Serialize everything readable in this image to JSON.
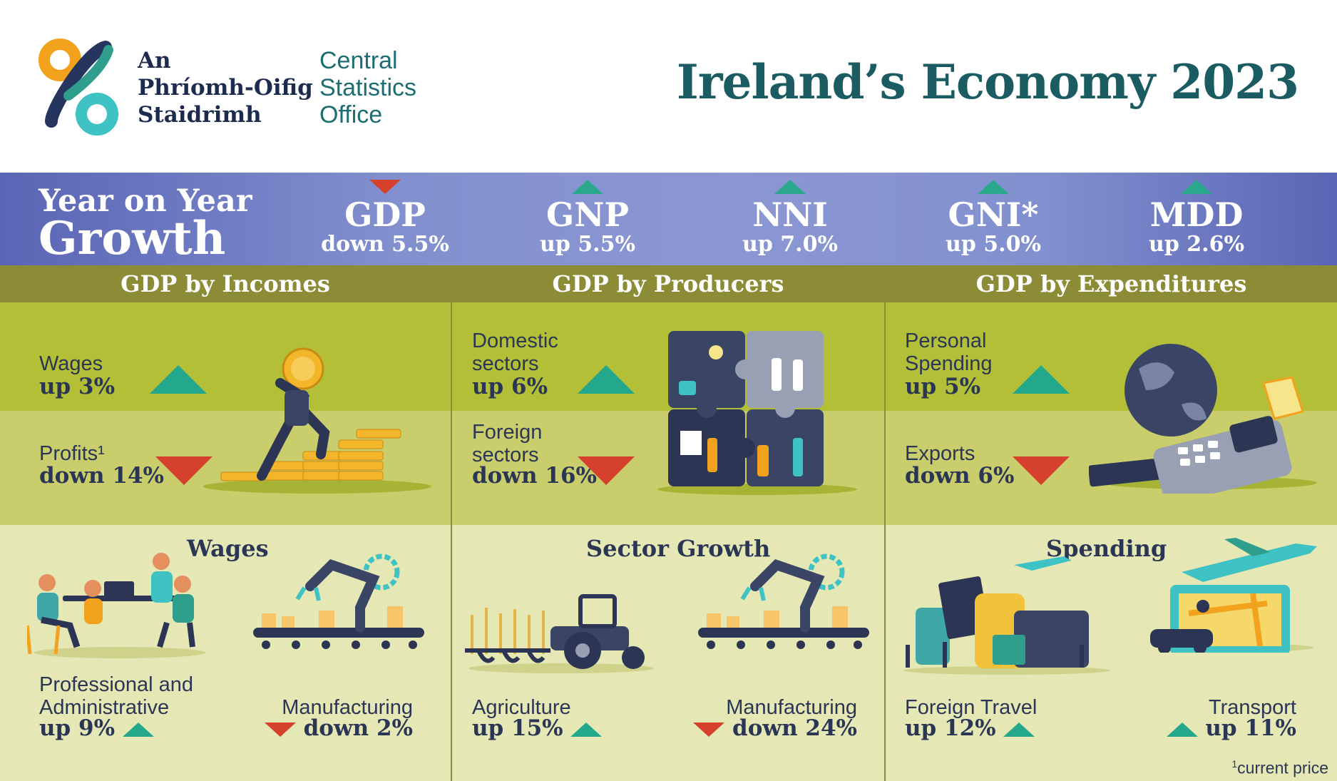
{
  "header": {
    "logo_irish": [
      "An",
      "Phríomh-Oifig",
      "Staidrimh"
    ],
    "logo_english": [
      "Central",
      "Statistics",
      "Office"
    ],
    "title": "Ireland’s Economy 2023"
  },
  "growth": {
    "heading_line1": "Year on Year",
    "heading_line2": "Growth",
    "metrics": [
      {
        "name": "GDP",
        "change": "down 5.5%",
        "direction": "down"
      },
      {
        "name": "GNP",
        "change": "up 5.5%",
        "direction": "up"
      },
      {
        "name": "NNI",
        "change": "up 7.0%",
        "direction": "up"
      },
      {
        "name": "GNI*",
        "change": "up 5.0%",
        "direction": "up"
      },
      {
        "name": "MDD",
        "change": "up 2.6%",
        "direction": "up"
      }
    ]
  },
  "incomes": {
    "title": "GDP by Incomes",
    "up_label": "Wages",
    "up_value": "up 3%",
    "down_label": "Profits¹",
    "down_value": "down 14%",
    "sub_title": "Wages",
    "left_label": [
      "Professional and",
      "Administrative"
    ],
    "left_value": "up 9%",
    "right_label": "Manufacturing",
    "right_value": "down 2%"
  },
  "producers": {
    "title": "GDP by Producers",
    "up_label": [
      "Domestic",
      "sectors"
    ],
    "up_value": "up 6%",
    "down_label": [
      "Foreign",
      "sectors"
    ],
    "down_value": "down 16%",
    "sub_title": "Sector Growth",
    "left_label": "Agriculture",
    "left_value": "up 15%",
    "right_label": "Manufacturing",
    "right_value": "down 24%"
  },
  "expenditures": {
    "title": "GDP by Expenditures",
    "up_label": [
      "Personal",
      "Spending"
    ],
    "up_value": "up 5%",
    "down_label": "Exports",
    "down_value": "down 6%",
    "sub_title": "Spending",
    "left_label": "Foreign Travel",
    "left_value": "up 12%",
    "right_label": "Transport",
    "right_value": "up 11%"
  },
  "footnote": {
    "marker": "1",
    "text": "current price"
  },
  "colors": {
    "up": "#23a88c",
    "down": "#d6412e",
    "header_teal": "#1b5c62",
    "band": "#8290cf",
    "olive": "#8d8c36"
  },
  "icons": [
    "cso-logo-icon",
    "coin-stack-icon",
    "puzzle-team-icon",
    "globe-card-terminal-icon",
    "office-team-icon",
    "robot-arm-icon",
    "tractor-icon",
    "luggage-icon",
    "plane-map-car-icon"
  ]
}
